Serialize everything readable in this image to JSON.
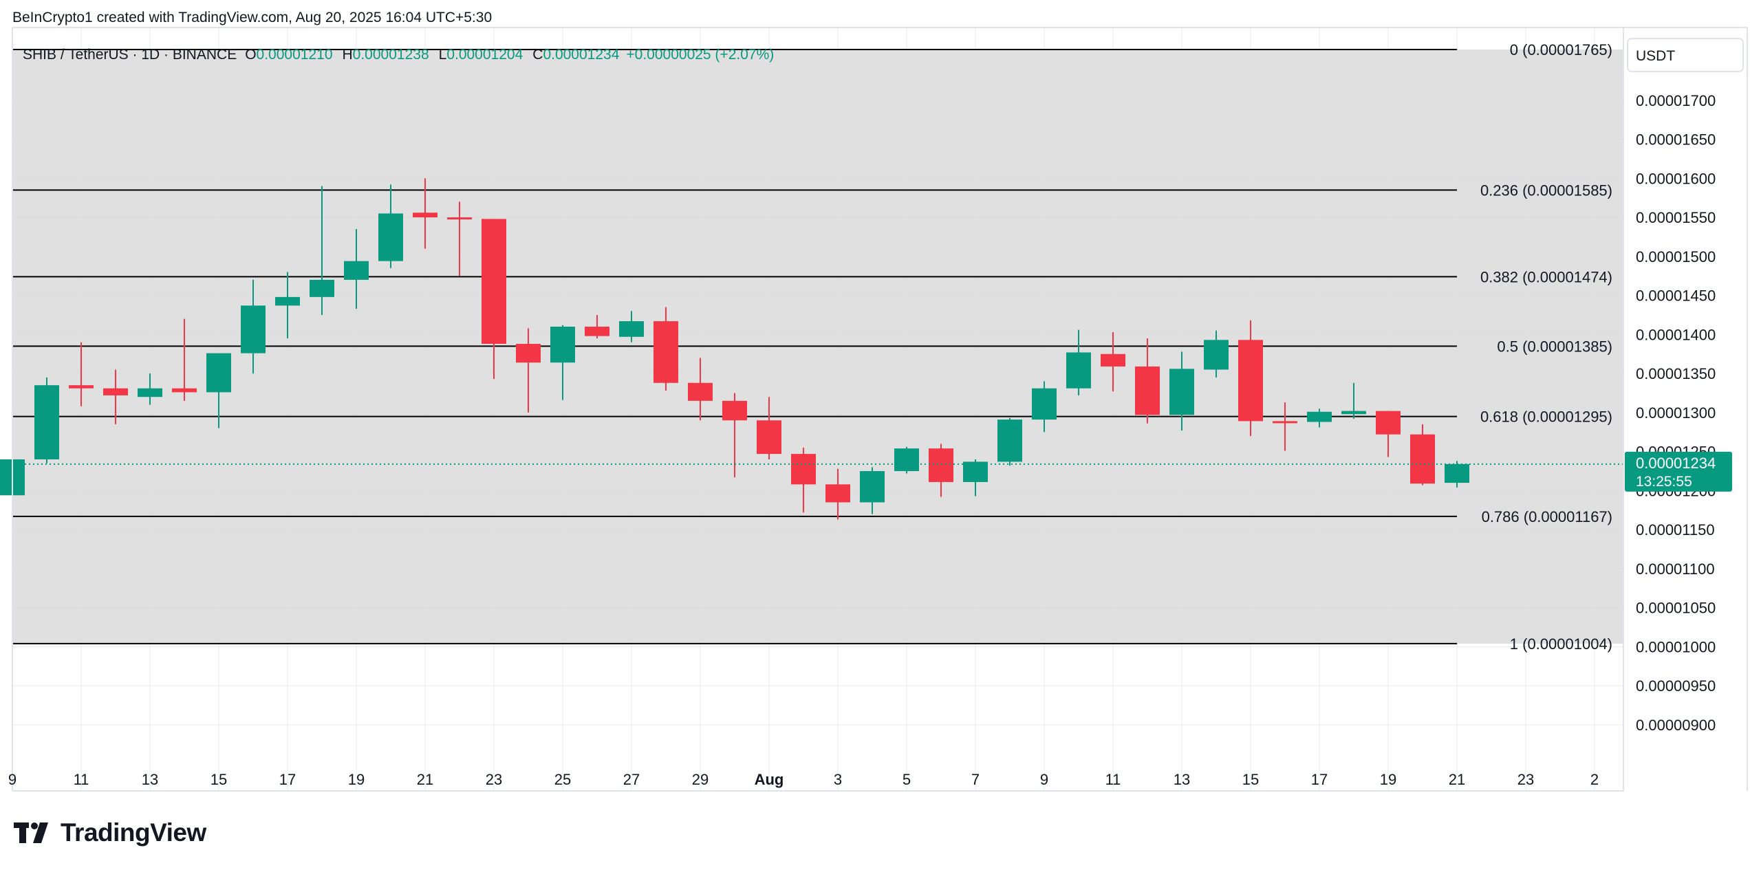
{
  "header": {
    "text": "BeInCrypto1 created with TradingView.com, Aug 20, 2025 16:04 UTC+5:30"
  },
  "brand": {
    "logo_text": "TradingView"
  },
  "legend": {
    "symbol": "SHIB / TetherUS · 1D · BINANCE",
    "o_label": "O",
    "o_value": "0.00001210",
    "h_label": "H",
    "h_value": "0.00001238",
    "l_label": "L",
    "l_value": "0.00001204",
    "c_label": "C",
    "c_value": "0.00001234",
    "change": "+0.00000025 (+2.07%)"
  },
  "price_scale": {
    "currency": "USDT",
    "ticks": [
      "0.00001700",
      "0.00001650",
      "0.00001600",
      "0.00001550",
      "0.00001500",
      "0.00001450",
      "0.00001400",
      "0.00001350",
      "0.00001300",
      "0.00001250",
      "0.00001200",
      "0.00001150",
      "0.00001100",
      "0.00001050",
      "0.00001000",
      "0.00000950",
      "0.00000900"
    ],
    "current_price": "0.00001234",
    "countdown": "13:25:55"
  },
  "time_axis": {
    "labels": [
      "9",
      "11",
      "13",
      "15",
      "17",
      "19",
      "21",
      "23",
      "25",
      "27",
      "29",
      "Aug",
      "3",
      "5",
      "7",
      "9",
      "11",
      "13",
      "15",
      "17",
      "19",
      "21",
      "23",
      "2"
    ]
  },
  "colors": {
    "up": "#089981",
    "down": "#f23645",
    "fib_zone": "#e0e0e0",
    "fib_line": "#000000",
    "text": "#131722"
  },
  "chart_data": {
    "type": "candlestick",
    "symbol": "SHIB / TetherUS",
    "interval": "1D",
    "exchange": "BINANCE",
    "ylim": [
      8.5e-06,
      1.785e-05
    ],
    "candles": [
      {
        "date": "Jul 9",
        "o": 1.194e-05,
        "h": 1.25e-05,
        "l": 1.185e-05,
        "c": 1.24e-05
      },
      {
        "date": "Jul 10",
        "o": 1.24e-05,
        "h": 1.345e-05,
        "l": 1.235e-05,
        "c": 1.335e-05
      },
      {
        "date": "Jul 11",
        "o": 1.335e-05,
        "h": 1.39e-05,
        "l": 1.308e-05,
        "c": 1.331e-05
      },
      {
        "date": "Jul 12",
        "o": 1.331e-05,
        "h": 1.355e-05,
        "l": 1.285e-05,
        "c": 1.322e-05
      },
      {
        "date": "Jul 13",
        "o": 1.32e-05,
        "h": 1.35e-05,
        "l": 1.31e-05,
        "c": 1.331e-05
      },
      {
        "date": "Jul 14",
        "o": 1.331e-05,
        "h": 1.42e-05,
        "l": 1.315e-05,
        "c": 1.326e-05
      },
      {
        "date": "Jul 15",
        "o": 1.326e-05,
        "h": 1.375e-05,
        "l": 1.28e-05,
        "c": 1.376e-05
      },
      {
        "date": "Jul 16",
        "o": 1.376e-05,
        "h": 1.47e-05,
        "l": 1.35e-05,
        "c": 1.437e-05
      },
      {
        "date": "Jul 17",
        "o": 1.437e-05,
        "h": 1.48e-05,
        "l": 1.395e-05,
        "c": 1.448e-05
      },
      {
        "date": "Jul 18",
        "o": 1.448e-05,
        "h": 1.59e-05,
        "l": 1.425e-05,
        "c": 1.47e-05
      },
      {
        "date": "Jul 19",
        "o": 1.47e-05,
        "h": 1.535e-05,
        "l": 1.433e-05,
        "c": 1.494e-05
      },
      {
        "date": "Jul 20",
        "o": 1.494e-05,
        "h": 1.592e-05,
        "l": 1.485e-05,
        "c": 1.555e-05
      },
      {
        "date": "Jul 21",
        "o": 1.556e-05,
        "h": 1.6e-05,
        "l": 1.51e-05,
        "c": 1.55e-05
      },
      {
        "date": "Jul 22",
        "o": 1.55e-05,
        "h": 1.57e-05,
        "l": 1.475e-05,
        "c": 1.549e-05
      },
      {
        "date": "Jul 23",
        "o": 1.548e-05,
        "h": 1.548e-05,
        "l": 1.343e-05,
        "c": 1.388e-05
      },
      {
        "date": "Jul 24",
        "o": 1.388e-05,
        "h": 1.408e-05,
        "l": 1.3e-05,
        "c": 1.364e-05
      },
      {
        "date": "Jul 25",
        "o": 1.364e-05,
        "h": 1.412e-05,
        "l": 1.316e-05,
        "c": 1.41e-05
      },
      {
        "date": "Jul 26",
        "o": 1.41e-05,
        "h": 1.425e-05,
        "l": 1.395e-05,
        "c": 1.398e-05
      },
      {
        "date": "Jul 27",
        "o": 1.397e-05,
        "h": 1.43e-05,
        "l": 1.39e-05,
        "c": 1.417e-05
      },
      {
        "date": "Jul 28",
        "o": 1.417e-05,
        "h": 1.435e-05,
        "l": 1.328e-05,
        "c": 1.338e-05
      },
      {
        "date": "Jul 29",
        "o": 1.338e-05,
        "h": 1.37e-05,
        "l": 1.29e-05,
        "c": 1.315e-05
      },
      {
        "date": "Jul 30",
        "o": 1.315e-05,
        "h": 1.325e-05,
        "l": 1.217e-05,
        "c": 1.29e-05
      },
      {
        "date": "Jul 31",
        "o": 1.29e-05,
        "h": 1.32e-05,
        "l": 1.24e-05,
        "c": 1.247e-05
      },
      {
        "date": "Aug 1",
        "o": 1.247e-05,
        "h": 1.255e-05,
        "l": 1.172e-05,
        "c": 1.208e-05
      },
      {
        "date": "Aug 2",
        "o": 1.208e-05,
        "h": 1.228e-05,
        "l": 1.163e-05,
        "c": 1.185e-05
      },
      {
        "date": "Aug 3",
        "o": 1.185e-05,
        "h": 1.23e-05,
        "l": 1.17e-05,
        "c": 1.225e-05
      },
      {
        "date": "Aug 4",
        "o": 1.225e-05,
        "h": 1.256e-05,
        "l": 1.222e-05,
        "c": 1.254e-05
      },
      {
        "date": "Aug 5",
        "o": 1.254e-05,
        "h": 1.26e-05,
        "l": 1.192e-05,
        "c": 1.211e-05
      },
      {
        "date": "Aug 6",
        "o": 1.211e-05,
        "h": 1.24e-05,
        "l": 1.193e-05,
        "c": 1.237e-05
      },
      {
        "date": "Aug 7",
        "o": 1.237e-05,
        "h": 1.293e-05,
        "l": 1.232e-05,
        "c": 1.291e-05
      },
      {
        "date": "Aug 8",
        "o": 1.291e-05,
        "h": 1.34e-05,
        "l": 1.275e-05,
        "c": 1.331e-05
      },
      {
        "date": "Aug 9",
        "o": 1.331e-05,
        "h": 1.406e-05,
        "l": 1.322e-05,
        "c": 1.377e-05
      },
      {
        "date": "Aug 10",
        "o": 1.375e-05,
        "h": 1.403e-05,
        "l": 1.327e-05,
        "c": 1.359e-05
      },
      {
        "date": "Aug 11",
        "o": 1.359e-05,
        "h": 1.395e-05,
        "l": 1.286e-05,
        "c": 1.297e-05
      },
      {
        "date": "Aug 12",
        "o": 1.297e-05,
        "h": 1.378e-05,
        "l": 1.277e-05,
        "c": 1.356e-05
      },
      {
        "date": "Aug 13",
        "o": 1.355e-05,
        "h": 1.405e-05,
        "l": 1.345e-05,
        "c": 1.393e-05
      },
      {
        "date": "Aug 14",
        "o": 1.393e-05,
        "h": 1.418e-05,
        "l": 1.27e-05,
        "c": 1.289e-05
      },
      {
        "date": "Aug 15",
        "o": 1.289e-05,
        "h": 1.313e-05,
        "l": 1.251e-05,
        "c": 1.287e-05
      },
      {
        "date": "Aug 16",
        "o": 1.288e-05,
        "h": 1.305e-05,
        "l": 1.281e-05,
        "c": 1.301e-05
      },
      {
        "date": "Aug 17",
        "o": 1.298e-05,
        "h": 1.338e-05,
        "l": 1.292e-05,
        "c": 1.302e-05
      },
      {
        "date": "Aug 18",
        "o": 1.302e-05,
        "h": 1.302e-05,
        "l": 1.243e-05,
        "c": 1.272e-05
      },
      {
        "date": "Aug 19",
        "o": 1.272e-05,
        "h": 1.285e-05,
        "l": 1.207e-05,
        "c": 1.209e-05
      },
      {
        "date": "Aug 20",
        "o": 1.21e-05,
        "h": 1.238e-05,
        "l": 1.204e-05,
        "c": 1.234e-05
      }
    ],
    "fibonacci": [
      {
        "label": "0 (0.00001765)",
        "ratio": 0,
        "price": 1.765e-05
      },
      {
        "label": "0.236 (0.00001585)",
        "ratio": 0.236,
        "price": 1.585e-05
      },
      {
        "label": "0.382 (0.00001474)",
        "ratio": 0.382,
        "price": 1.474e-05
      },
      {
        "label": "0.5 (0.00001385)",
        "ratio": 0.5,
        "price": 1.385e-05
      },
      {
        "label": "0.618 (0.00001295)",
        "ratio": 0.618,
        "price": 1.295e-05
      },
      {
        "label": "0.786 (0.00001167)",
        "ratio": 0.786,
        "price": 1.167e-05
      },
      {
        "label": "1 (0.00001004)",
        "ratio": 1,
        "price": 1.004e-05
      }
    ],
    "grid": true
  }
}
